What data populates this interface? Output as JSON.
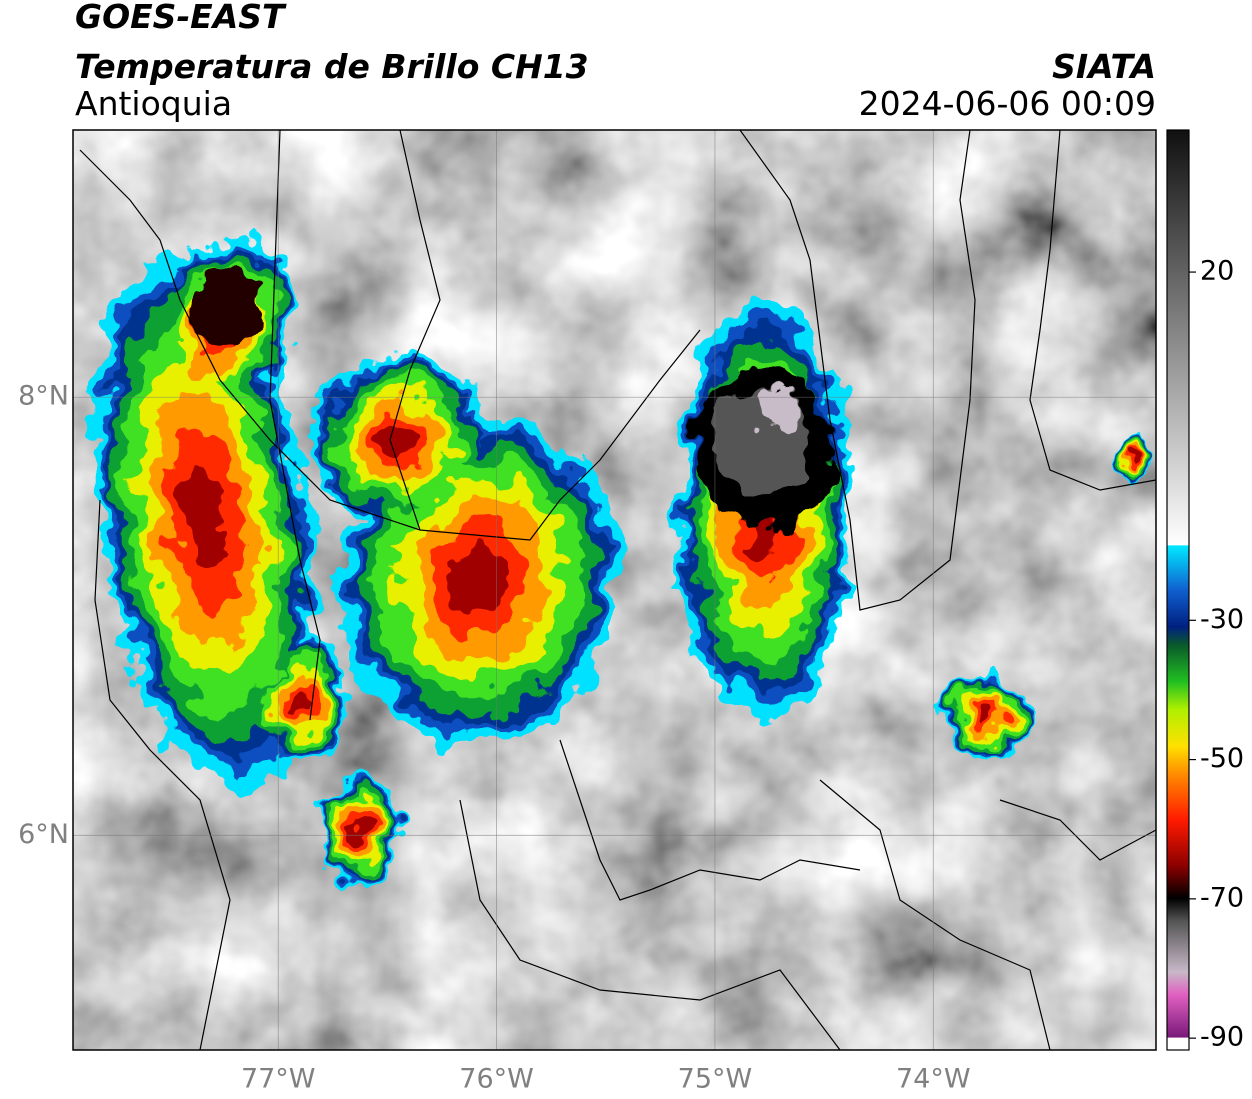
{
  "header": {
    "source": "GOES-EAST",
    "product": "Temperatura de Brillo CH13",
    "region": "Antioquia",
    "agency": "SIATA",
    "timestamp": "2024-06-06 00:09"
  },
  "map": {
    "xlim": [
      -77.94,
      -72.98
    ],
    "ylim": [
      5.02,
      9.22
    ],
    "xticks": [
      {
        "value": -77,
        "label": "77°W"
      },
      {
        "value": -76,
        "label": "76°W"
      },
      {
        "value": -75,
        "label": "75°W"
      },
      {
        "value": -74,
        "label": "74°W"
      }
    ],
    "yticks": [
      {
        "value": 8,
        "label": "8°N"
      },
      {
        "value": 6,
        "label": "6°N"
      }
    ],
    "grid": true
  },
  "colorbar": {
    "lim": [
      -91.7,
      40.4
    ],
    "ticks": [
      20,
      -30,
      -50,
      -70,
      -90
    ]
  }
}
